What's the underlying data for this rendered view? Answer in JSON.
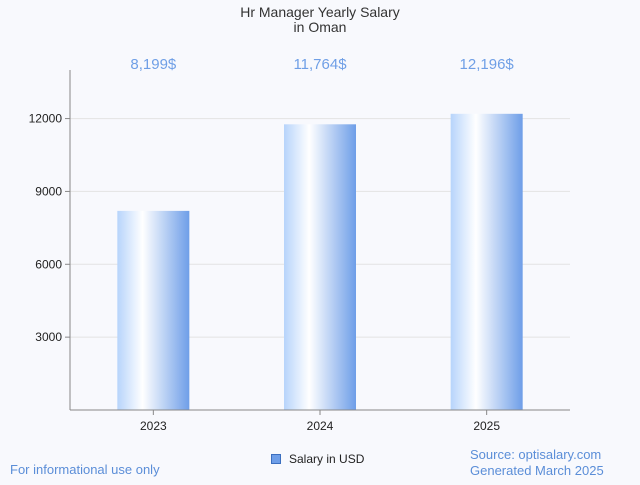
{
  "chart_data": {
    "type": "bar",
    "title_line1": "Hr Manager Yearly Salary",
    "title_line2": "in Oman",
    "categories": [
      "2023",
      "2024",
      "2025"
    ],
    "values": [
      8199,
      11764,
      12196
    ],
    "value_labels": [
      "8,199$",
      "11,764$",
      "12,196$"
    ],
    "yticks": [
      3000,
      6000,
      9000,
      12000
    ],
    "ylim": [
      0,
      14000
    ],
    "legend": "Salary in USD",
    "grid": true
  },
  "footer": {
    "disclaimer": "For informational use only",
    "source": "Source: optisalary.com",
    "generated": "Generated March 2025"
  },
  "colors": {
    "bar_edge": "#6e9ee8",
    "bar_light": "#ffffff",
    "bar_mid": "#b7d4fb",
    "value_label": "#6f9fe6",
    "grid": "#e3e3e3",
    "axis": "#888888"
  }
}
